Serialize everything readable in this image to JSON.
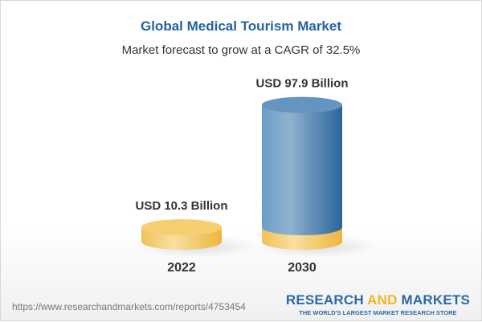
{
  "title": "Global Medical Tourism Market",
  "subtitle": "Market forecast to grow at a CAGR of 32.5%",
  "footer": {
    "url": "https://www.researchandmarkets.com/reports/4753454",
    "logo": {
      "part1": "RESEARCH",
      "part2": "AND",
      "part3": "MARKETS",
      "tagline": "THE WORLD'S LARGEST MARKET RESEARCH STORE"
    }
  },
  "colors": {
    "base": "#f2c45a",
    "bar": "#4a86b8",
    "title": "#2563a0"
  },
  "chart_data": {
    "type": "bar",
    "style": "3d-cylinder",
    "categories": [
      "2022",
      "2030"
    ],
    "values": [
      10.3,
      97.9
    ],
    "data_labels": [
      "USD 10.3 Billion",
      "USD 97.9 Billion"
    ],
    "unit": "USD Billion",
    "grid": false
  }
}
